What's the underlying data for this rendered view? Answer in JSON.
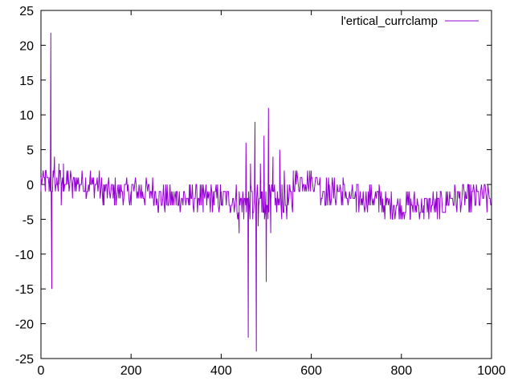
{
  "chart_data": {
    "type": "line",
    "title": "",
    "xlabel": "",
    "ylabel": "",
    "xlim": [
      0,
      1000
    ],
    "ylim": [
      -25,
      25
    ],
    "x_ticks": [
      0,
      200,
      400,
      600,
      800,
      1000
    ],
    "x_tick_labels": [
      "0",
      "200",
      "400",
      "600",
      "800",
      "1000"
    ],
    "y_ticks": [
      -25,
      -20,
      -15,
      -10,
      -5,
      0,
      5,
      10,
      15,
      20,
      25
    ],
    "y_tick_labels": [
      "-25",
      "-20",
      "-15",
      "-10",
      "-5",
      "0",
      "5",
      "10",
      "15",
      "20",
      "25"
    ],
    "grid": false,
    "legend_position": "top-right",
    "series": [
      {
        "name": "l'ertical_currclamp",
        "color": "#9400d3",
        "keypoints": [
          [
            0,
            -1
          ],
          [
            10,
            2
          ],
          [
            18,
            -1
          ],
          [
            22,
            21.8
          ],
          [
            24,
            -15
          ],
          [
            27,
            2
          ],
          [
            30,
            4
          ],
          [
            35,
            0
          ],
          [
            40,
            3
          ],
          [
            45,
            -3
          ],
          [
            50,
            3
          ],
          [
            60,
            2
          ],
          [
            70,
            -2
          ],
          [
            100,
            -2
          ],
          [
            110,
            2
          ],
          [
            140,
            -3
          ],
          [
            160,
            -2
          ],
          [
            200,
            -3
          ],
          [
            250,
            -3
          ],
          [
            260,
            -4
          ],
          [
            300,
            -3
          ],
          [
            330,
            -3
          ],
          [
            360,
            -4
          ],
          [
            400,
            -3
          ],
          [
            420,
            -4
          ],
          [
            440,
            -7
          ],
          [
            450,
            -5
          ],
          [
            455,
            6
          ],
          [
            460,
            -22
          ],
          [
            465,
            3
          ],
          [
            470,
            -5
          ],
          [
            475,
            9
          ],
          [
            478,
            -24
          ],
          [
            482,
            -6
          ],
          [
            487,
            3
          ],
          [
            490,
            -4
          ],
          [
            495,
            7
          ],
          [
            500,
            -14
          ],
          [
            505,
            11
          ],
          [
            510,
            -7
          ],
          [
            515,
            4
          ],
          [
            520,
            -3
          ],
          [
            530,
            5
          ],
          [
            535,
            0
          ],
          [
            540,
            2
          ],
          [
            560,
            2
          ],
          [
            600,
            2
          ],
          [
            620,
            -1
          ],
          [
            640,
            -3
          ],
          [
            670,
            -3
          ],
          [
            700,
            -4
          ],
          [
            750,
            -4
          ],
          [
            780,
            -5
          ],
          [
            820,
            -5
          ],
          [
            850,
            -5
          ],
          [
            880,
            -5
          ],
          [
            900,
            -3
          ],
          [
            950,
            -4
          ],
          [
            990,
            -4
          ],
          [
            1000,
            -2
          ]
        ],
        "noise_band": [
          [
            0,
            -1.5,
            2
          ],
          [
            100,
            -2,
            2
          ],
          [
            130,
            -3,
            1
          ],
          [
            250,
            -3,
            1
          ],
          [
            260,
            -4,
            0
          ],
          [
            400,
            -4,
            0
          ],
          [
            430,
            -5,
            0
          ],
          [
            560,
            -1,
            2
          ],
          [
            600,
            -1,
            2
          ],
          [
            620,
            -3,
            1
          ],
          [
            680,
            -4,
            0
          ],
          [
            760,
            -5,
            -1
          ],
          [
            880,
            -5,
            -1
          ],
          [
            900,
            -4,
            0
          ],
          [
            1000,
            -4,
            1
          ]
        ]
      }
    ]
  }
}
